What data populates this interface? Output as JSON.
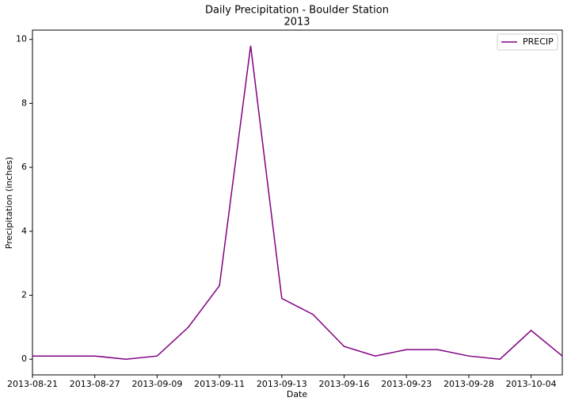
{
  "chart_data": {
    "type": "line",
    "title": "Daily Precipitation - Boulder Station",
    "subtitle": "2013",
    "x_label": "Date",
    "y_label": "Precipitation (inches)",
    "categories": [
      "2013-08-21",
      null,
      "2013-08-27",
      null,
      "2013-09-09",
      null,
      "2013-09-11",
      null,
      "2013-09-13",
      null,
      "2013-09-16",
      null,
      "2013-09-23",
      null,
      "2013-09-28",
      null,
      "2013-10-04",
      null
    ],
    "series": [
      {
        "name": "PRECIP",
        "color": "#800080",
        "values": [
          0.1,
          0.1,
          0.1,
          0,
          0.1,
          1.0,
          2.3,
          9.8,
          1.9,
          1.4,
          0.4,
          0.1,
          0.3,
          0.3,
          0.1,
          0,
          0.9,
          0.1
        ]
      }
    ],
    "ylim": [
      -0.49,
      10.29
    ],
    "yticks": [
      0,
      2,
      4,
      6,
      8,
      10
    ],
    "grid": false,
    "legend": "upper right"
  }
}
